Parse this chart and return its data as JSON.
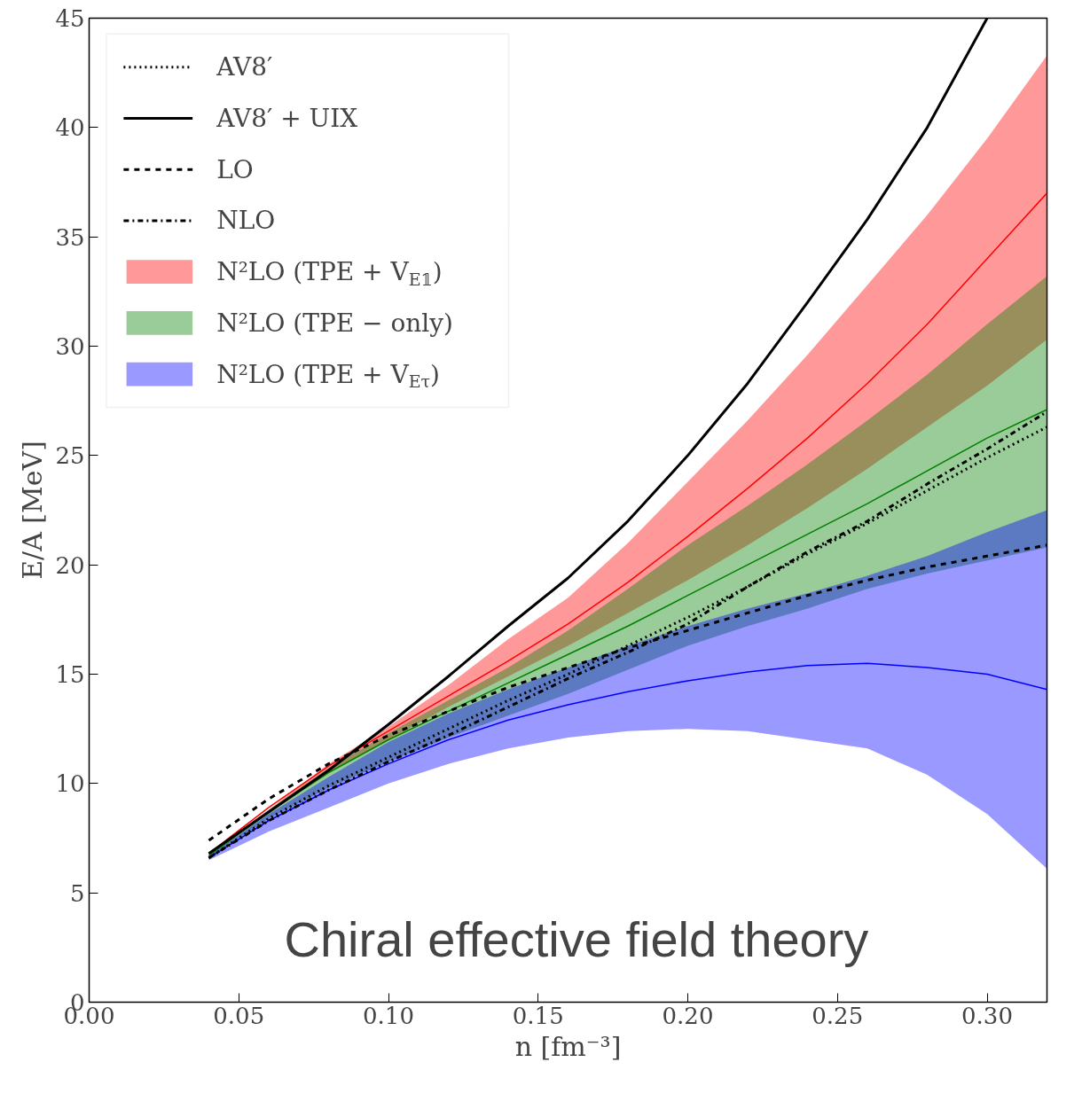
{
  "chart_data": {
    "type": "line",
    "xlabel": "n [fm⁻³]",
    "ylabel": "E/A [MeV]",
    "x": [
      0.04,
      0.06,
      0.08,
      0.1,
      0.12,
      0.14,
      0.16,
      0.18,
      0.2,
      0.22,
      0.24,
      0.26,
      0.28,
      0.3,
      0.32
    ],
    "xlim": [
      0,
      0.32
    ],
    "ylim": [
      0,
      45
    ],
    "xticks": [
      {
        "value": 0,
        "label": "0.00"
      },
      {
        "value": 0.05,
        "label": "0.05"
      },
      {
        "value": 0.1,
        "label": "0.10"
      },
      {
        "value": 0.15,
        "label": "0.15"
      },
      {
        "value": 0.2,
        "label": "0.20"
      },
      {
        "value": 0.25,
        "label": "0.25"
      },
      {
        "value": 0.3,
        "label": "0.30"
      }
    ],
    "yticks": [
      0,
      5,
      10,
      15,
      20,
      25,
      30,
      35,
      40,
      45
    ],
    "legend": "top left",
    "grid": false,
    "annotations": [
      "Chiral effective field theory"
    ],
    "series": [
      {
        "name": "AV8′",
        "color": "#000000",
        "line_style": "dotted",
        "values": [
          6.6,
          8.4,
          9.9,
          11.2,
          12.5,
          13.8,
          15.0,
          16.3,
          17.6,
          19.0,
          20.5,
          21.9,
          23.4,
          24.9,
          26.3
        ]
      },
      {
        "name": "AV8′ + UIX",
        "color": "#000000",
        "line_style": "solid",
        "values": [
          6.8,
          8.7,
          10.6,
          12.7,
          14.9,
          17.2,
          19.4,
          22.0,
          25.0,
          28.3,
          32.0,
          35.8,
          40.0,
          45.0,
          null
        ]
      },
      {
        "name": "LO",
        "color": "#000000",
        "line_style": "dashed",
        "values": [
          7.4,
          9.3,
          10.9,
          12.2,
          13.3,
          14.4,
          15.3,
          16.2,
          17.0,
          17.8,
          18.6,
          19.3,
          19.9,
          20.4,
          20.9
        ]
      },
      {
        "name": "NLO",
        "color": "#000000",
        "line_style": "dashdot",
        "values": [
          6.6,
          8.3,
          9.7,
          11.0,
          12.2,
          13.5,
          14.8,
          16.0,
          17.3,
          19.0,
          20.6,
          22.0,
          23.7,
          25.3,
          27.0
        ]
      },
      {
        "name": "N²LO (TPE + V$_{E𝟙}$)",
        "color": "#ff0000",
        "line_style": "solid",
        "values": [
          6.8,
          8.9,
          10.8,
          12.4,
          14.0,
          15.6,
          17.3,
          19.2,
          21.3,
          23.5,
          25.8,
          28.3,
          31.0,
          34.0,
          37.0
        ],
        "lower": [
          6.7,
          8.7,
          10.5,
          12.0,
          13.5,
          14.9,
          16.3,
          17.8,
          19.3,
          20.9,
          22.6,
          24.4,
          26.3,
          28.2,
          30.3
        ],
        "upper": [
          6.8,
          8.8,
          10.9,
          12.6,
          14.5,
          16.6,
          18.5,
          21.0,
          23.8,
          26.6,
          29.6,
          32.8,
          36.0,
          39.5,
          43.3
        ]
      },
      {
        "name": "N²LO (TPE − only)",
        "color": "#008000",
        "line_style": "solid",
        "values": [
          6.7,
          8.7,
          10.5,
          12.0,
          13.3,
          14.6,
          15.9,
          17.2,
          18.6,
          20.0,
          21.4,
          22.8,
          24.3,
          25.8,
          27.1
        ],
        "lower": [
          6.6,
          8.4,
          9.8,
          11.0,
          12.1,
          13.1,
          14.1,
          15.2,
          16.3,
          17.2,
          18.0,
          18.9,
          19.6,
          20.2,
          20.8
        ],
        "upper": [
          6.8,
          8.8,
          10.7,
          12.3,
          13.8,
          15.3,
          17.0,
          18.9,
          20.9,
          22.7,
          24.6,
          26.6,
          28.7,
          31.0,
          33.2
        ]
      },
      {
        "name": "N²LO (TPE + V$_{Eτ}$)",
        "color": "#0000ff",
        "line_style": "solid",
        "values": [
          6.6,
          8.3,
          9.7,
          10.9,
          12.0,
          12.9,
          13.6,
          14.2,
          14.7,
          15.1,
          15.4,
          15.5,
          15.3,
          15.0,
          14.3
        ],
        "lower": [
          6.5,
          7.8,
          8.9,
          10.0,
          10.9,
          11.6,
          12.1,
          12.4,
          12.5,
          12.4,
          12.0,
          11.6,
          10.4,
          8.6,
          6.1
        ],
        "upper": [
          6.7,
          8.6,
          10.3,
          11.9,
          13.2,
          14.3,
          15.3,
          16.3,
          17.2,
          18.0,
          18.7,
          19.5,
          20.4,
          21.5,
          22.5
        ]
      }
    ]
  }
}
